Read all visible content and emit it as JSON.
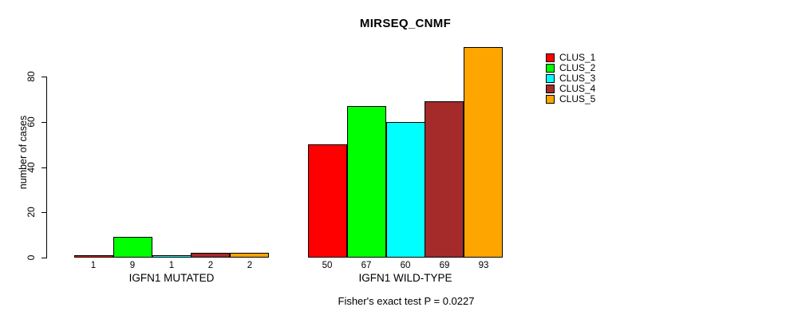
{
  "chart_data": {
    "type": "bar",
    "title": "MIRSEQ_CNMF",
    "ylabel": "number of cases",
    "xlabel": "",
    "yticks": [
      0,
      20,
      40,
      60,
      80
    ],
    "ylim": [
      0,
      97
    ],
    "grid": false,
    "legend_position": "top-right",
    "series": [
      {
        "name": "CLUS_1",
        "color": "#FF0000"
      },
      {
        "name": "CLUS_2",
        "color": "#00FF00"
      },
      {
        "name": "CLUS_3",
        "color": "#00FFFF"
      },
      {
        "name": "CLUS_4",
        "color": "#A52A2A"
      },
      {
        "name": "CLUS_5",
        "color": "#FFA500"
      }
    ],
    "groups": [
      {
        "label": "IGFN1 MUTATED",
        "values": [
          1,
          9,
          1,
          2,
          2
        ]
      },
      {
        "label": "IGFN1 WILD-TYPE",
        "values": [
          50,
          67,
          60,
          69,
          93
        ]
      }
    ],
    "annotation": "Fisher's exact test P = 0.0227"
  }
}
